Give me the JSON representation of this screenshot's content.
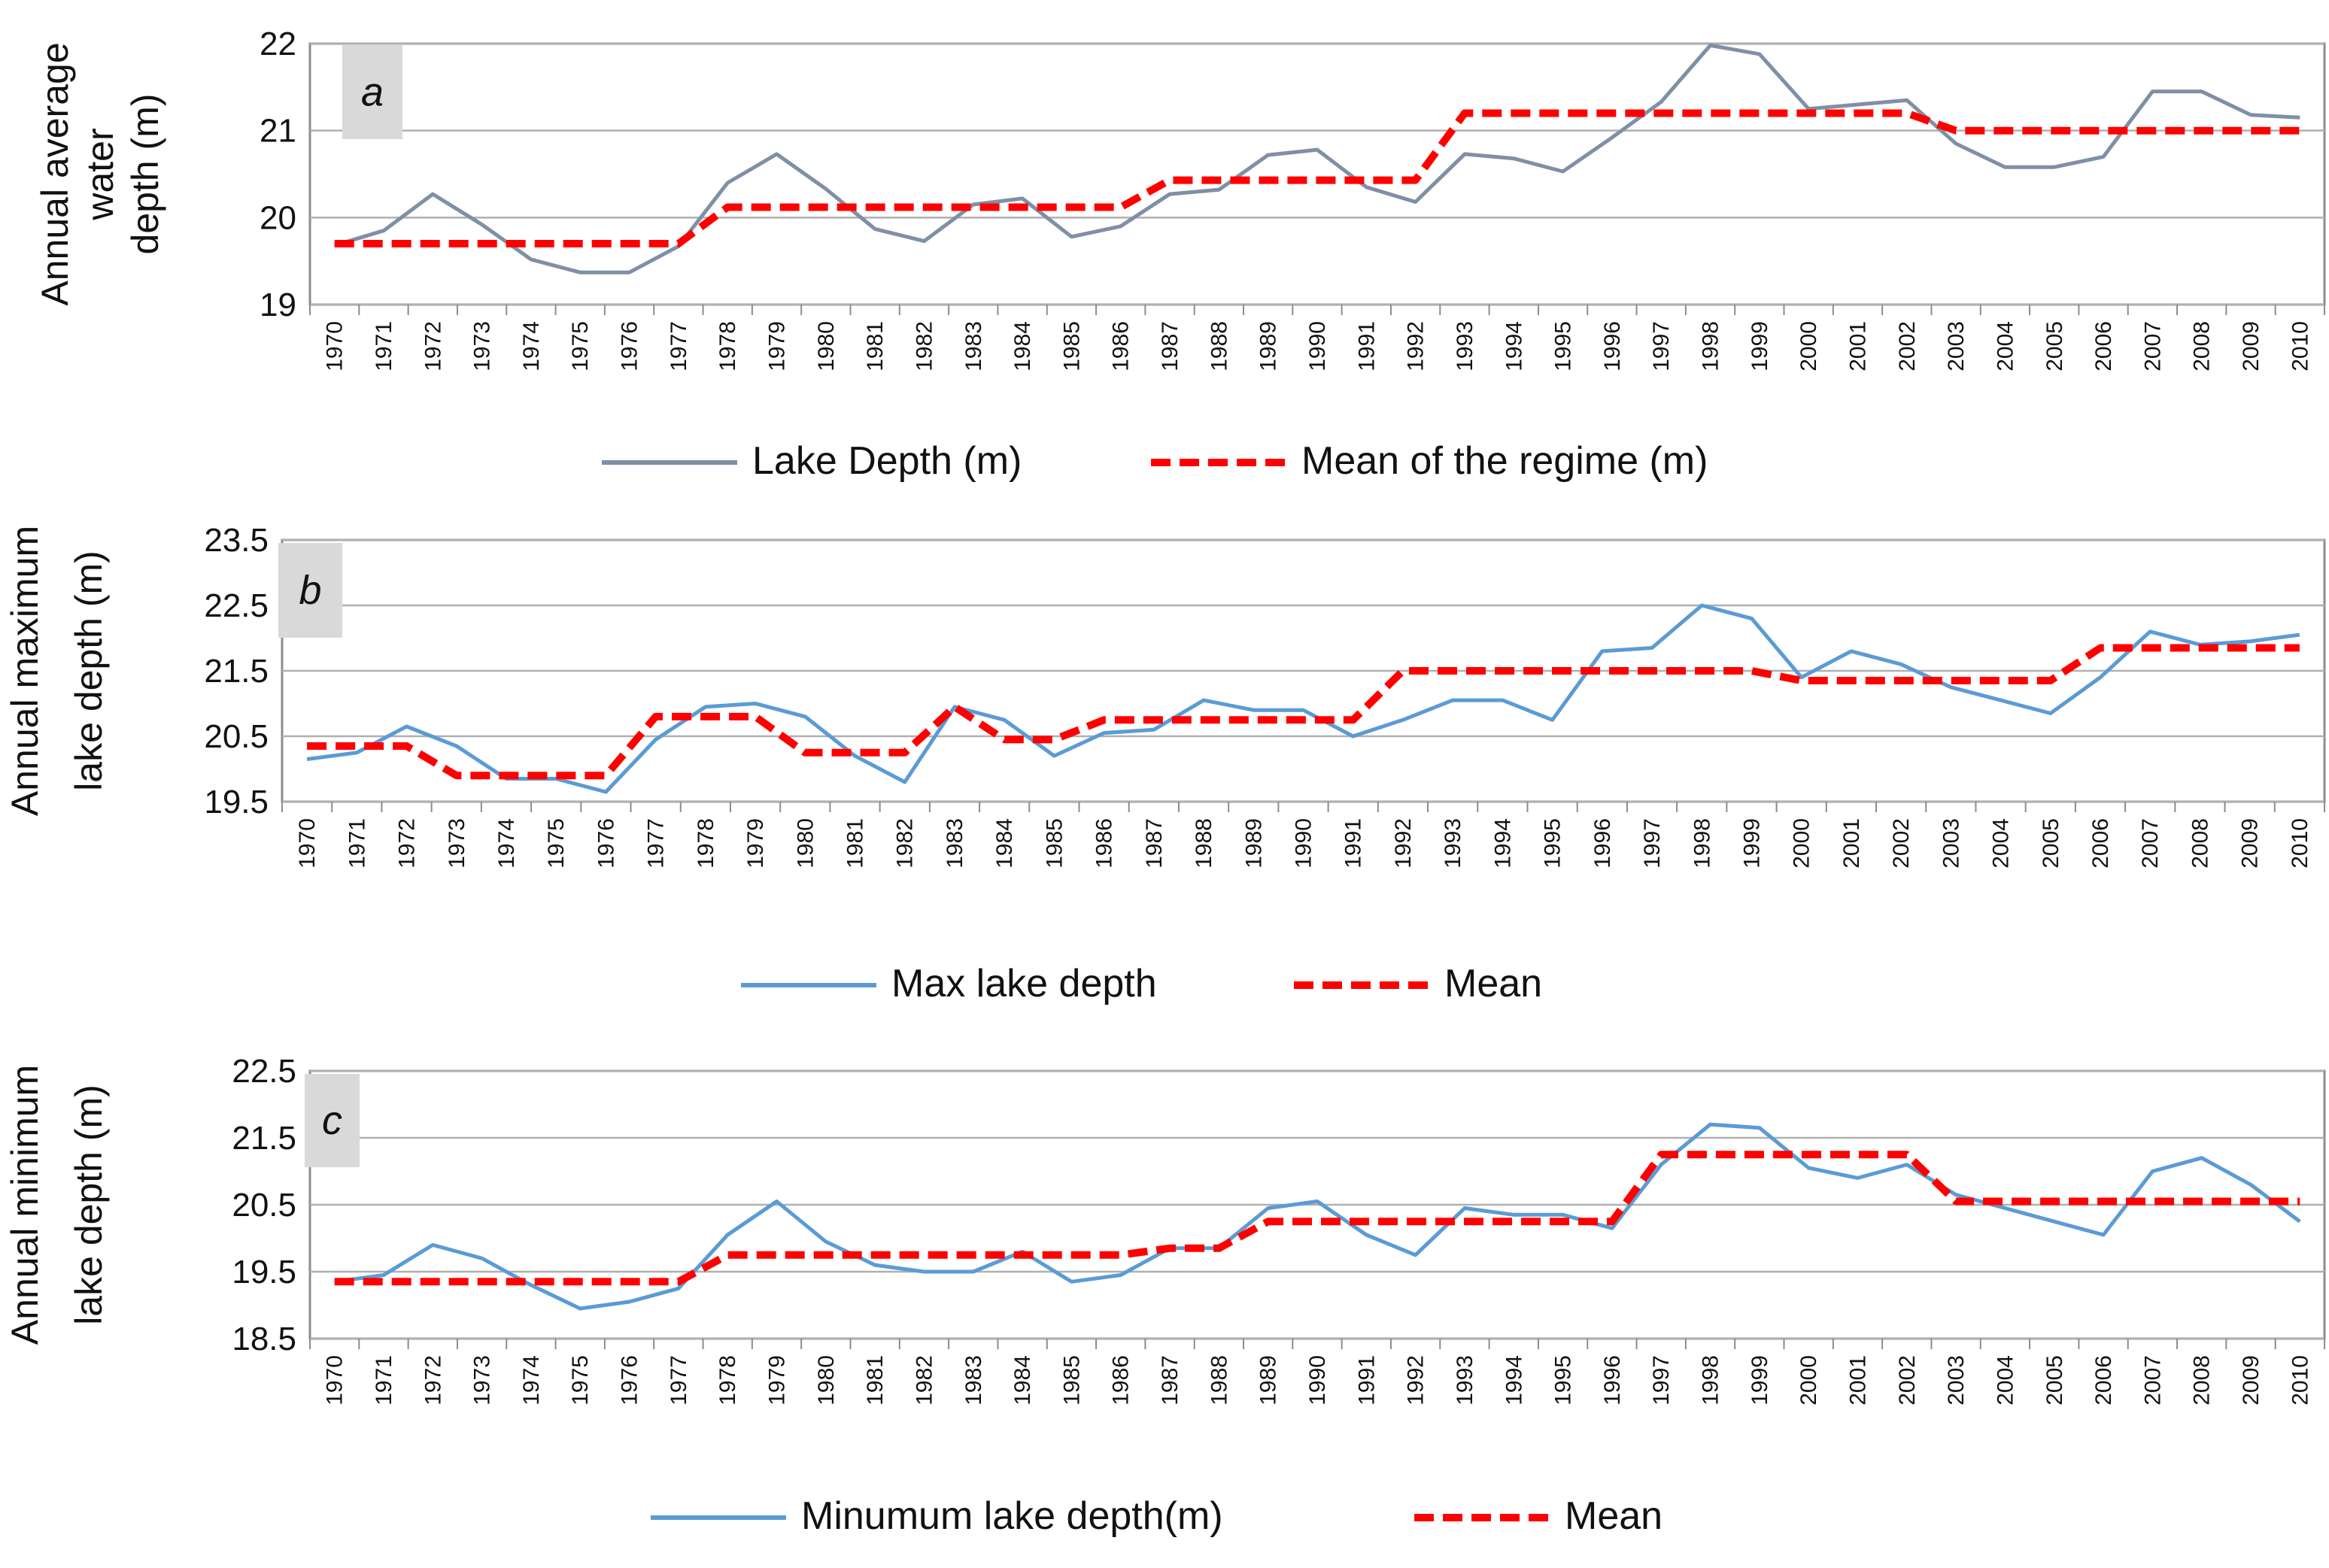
{
  "chart_data": [
    {
      "type": "line",
      "panel_label": "a",
      "ylabel_lines": [
        "Annual average",
        "water",
        "depth (m)"
      ],
      "ylim": [
        19,
        22
      ],
      "yticks": [
        19,
        20,
        21,
        22
      ],
      "ytick_labels": [
        "19",
        "20",
        "21",
        "22"
      ],
      "categories": [
        "1970",
        "1971",
        "1972",
        "1973",
        "1974",
        "1975",
        "1976",
        "1977",
        "1978",
        "1979",
        "1980",
        "1981",
        "1982",
        "1983",
        "1984",
        "1985",
        "1986",
        "1987",
        "1988",
        "1989",
        "1990",
        "1991",
        "1992",
        "1993",
        "1994",
        "1995",
        "1996",
        "1997",
        "1998",
        "1999",
        "2000",
        "2001",
        "2002",
        "2003",
        "2004",
        "2005",
        "2006",
        "2007",
        "2008",
        "2009",
        "2010"
      ],
      "grid": true,
      "legend_position": "bottom",
      "series": [
        {
          "name": "Lake Depth (m)",
          "style": "solid",
          "color": "#7f8fa6",
          "values": [
            19.68,
            19.85,
            20.27,
            19.92,
            19.52,
            19.37,
            19.37,
            19.67,
            20.4,
            20.73,
            20.33,
            19.87,
            19.73,
            20.15,
            20.22,
            19.78,
            19.9,
            20.27,
            20.32,
            20.72,
            20.78,
            20.35,
            20.18,
            20.73,
            20.68,
            20.53,
            20.92,
            21.33,
            21.98,
            21.88,
            21.25,
            21.3,
            21.35,
            20.85,
            20.58,
            20.58,
            20.7,
            21.45,
            21.45,
            21.18,
            21.15
          ]
        },
        {
          "name": "Mean of the regime (m)",
          "style": "dashed",
          "color": "#ff0000",
          "values": [
            19.7,
            19.7,
            19.7,
            19.7,
            19.7,
            19.7,
            19.7,
            19.7,
            20.12,
            20.12,
            20.12,
            20.12,
            20.12,
            20.12,
            20.12,
            20.12,
            20.12,
            20.43,
            20.43,
            20.43,
            20.43,
            20.43,
            20.43,
            21.2,
            21.2,
            21.2,
            21.2,
            21.2,
            21.2,
            21.2,
            21.2,
            21.2,
            21.2,
            21.0,
            21.0,
            21.0,
            21.0,
            21.0,
            21.0,
            21.0,
            21.0
          ]
        }
      ]
    },
    {
      "type": "line",
      "panel_label": "b",
      "ylabel_lines": [
        "Annual maximum",
        "lake depth (m)"
      ],
      "ylim": [
        19.5,
        23.5
      ],
      "yticks": [
        19.5,
        20.5,
        21.5,
        22.5,
        23.5
      ],
      "ytick_labels": [
        "19.5",
        "20.5",
        "21.5",
        "22.5",
        "23.5"
      ],
      "categories": [
        "1970",
        "1971",
        "1972",
        "1973",
        "1974",
        "1975",
        "1976",
        "1977",
        "1978",
        "1979",
        "1980",
        "1981",
        "1982",
        "1983",
        "1984",
        "1985",
        "1986",
        "1987",
        "1988",
        "1989",
        "1990",
        "1991",
        "1992",
        "1993",
        "1994",
        "1995",
        "1996",
        "1997",
        "1998",
        "1999",
        "2000",
        "2001",
        "2002",
        "2003",
        "2004",
        "2005",
        "2006",
        "2007",
        "2008",
        "2009",
        "2010"
      ],
      "grid": true,
      "legend_position": "bottom",
      "series": [
        {
          "name": "Max lake depth",
          "style": "solid",
          "color": "#5b9bd5",
          "values": [
            20.15,
            20.25,
            20.65,
            20.35,
            19.85,
            19.85,
            19.65,
            20.45,
            20.95,
            21.0,
            20.8,
            20.2,
            19.8,
            20.95,
            20.75,
            20.2,
            20.55,
            20.6,
            21.05,
            20.9,
            20.9,
            20.5,
            20.75,
            21.05,
            21.05,
            20.75,
            21.8,
            21.85,
            22.5,
            22.3,
            21.4,
            21.8,
            21.6,
            21.25,
            21.05,
            20.85,
            21.4,
            22.1,
            21.9,
            21.95,
            22.05
          ]
        },
        {
          "name": "Mean",
          "style": "dashed",
          "color": "#ff0000",
          "values": [
            20.35,
            20.35,
            20.35,
            19.9,
            19.9,
            19.9,
            19.9,
            20.8,
            20.8,
            20.8,
            20.25,
            20.25,
            20.25,
            20.95,
            20.45,
            20.45,
            20.75,
            20.75,
            20.75,
            20.75,
            20.75,
            20.75,
            21.5,
            21.5,
            21.5,
            21.5,
            21.5,
            21.5,
            21.5,
            21.5,
            21.35,
            21.35,
            21.35,
            21.35,
            21.35,
            21.35,
            21.85,
            21.85,
            21.85,
            21.85,
            21.85
          ]
        }
      ]
    },
    {
      "type": "line",
      "panel_label": "c",
      "ylabel_lines": [
        "Annual minimum",
        "lake depth (m)"
      ],
      "ylim": [
        18.5,
        22.5
      ],
      "yticks": [
        18.5,
        19.5,
        20.5,
        21.5,
        22.5
      ],
      "ytick_labels": [
        "18.5",
        "19.5",
        "20.5",
        "21.5",
        "22.5"
      ],
      "categories": [
        "1970",
        "1971",
        "1972",
        "1973",
        "1974",
        "1975",
        "1976",
        "1977",
        "1978",
        "1979",
        "1980",
        "1981",
        "1982",
        "1983",
        "1984",
        "1985",
        "1986",
        "1987",
        "1988",
        "1989",
        "1990",
        "1991",
        "1992",
        "1993",
        "1994",
        "1995",
        "1996",
        "1997",
        "1998",
        "1999",
        "2000",
        "2001",
        "2002",
        "2003",
        "2004",
        "2005",
        "2006",
        "2007",
        "2008",
        "2009",
        "2010"
      ],
      "grid": true,
      "legend_position": "bottom",
      "series": [
        {
          "name": "Minumum lake depth(m)",
          "style": "solid",
          "color": "#5b9bd5",
          "values": [
            19.35,
            19.45,
            19.9,
            19.7,
            19.3,
            18.95,
            19.05,
            19.25,
            20.05,
            20.55,
            19.95,
            19.6,
            19.5,
            19.5,
            19.8,
            19.35,
            19.45,
            19.85,
            19.85,
            20.45,
            20.55,
            20.05,
            19.75,
            20.45,
            20.35,
            20.35,
            20.15,
            21.1,
            21.7,
            21.65,
            21.05,
            20.9,
            21.1,
            20.65,
            20.45,
            20.25,
            20.05,
            21.0,
            21.2,
            20.8,
            20.25
          ]
        },
        {
          "name": "Mean",
          "style": "dashed",
          "color": "#ff0000",
          "values": [
            19.35,
            19.35,
            19.35,
            19.35,
            19.35,
            19.35,
            19.35,
            19.35,
            19.75,
            19.75,
            19.75,
            19.75,
            19.75,
            19.75,
            19.75,
            19.75,
            19.75,
            19.85,
            19.85,
            20.25,
            20.25,
            20.25,
            20.25,
            20.25,
            20.25,
            20.25,
            20.25,
            21.25,
            21.25,
            21.25,
            21.25,
            21.25,
            21.25,
            20.55,
            20.55,
            20.55,
            20.55,
            20.55,
            20.55,
            20.55,
            20.55
          ]
        }
      ]
    }
  ]
}
